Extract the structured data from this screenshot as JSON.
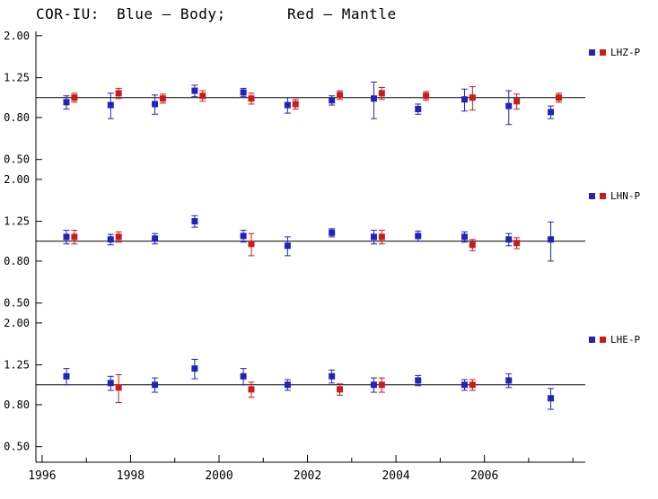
{
  "title": {
    "station": "COR-IU:",
    "body_legend": "Blue — Body;",
    "mantle_legend": "Red — Mantle"
  },
  "colors": {
    "axis": "#000000",
    "body": "#2323bb",
    "mantle": "#cc1b1b"
  },
  "axes": {
    "x_range": [
      1995.86,
      2008.28
    ],
    "x_ticks": [
      1996,
      1998,
      2000,
      2002,
      2004,
      2006
    ],
    "y_range": [
      0.42,
      2.1
    ],
    "y_scale": "log",
    "y_ticks": [
      2.0,
      1.25,
      0.8,
      0.5
    ],
    "y_tick_labels": [
      "2.00",
      "1.25",
      "0.80",
      "0.50"
    ],
    "reference_line": 1.0,
    "grid": false,
    "legend_position": "right"
  },
  "chart_data": [
    {
      "type": "scatter",
      "panel": "LHZ-P",
      "series": [
        {
          "name": "Body",
          "color_key": "body",
          "x": [
            1996.55,
            1997.55,
            1998.55,
            1999.45,
            2000.55,
            2001.55,
            2002.55,
            2003.5,
            2004.5,
            2005.55,
            2006.55,
            2007.5
          ],
          "y": [
            0.95,
            0.92,
            0.93,
            1.08,
            1.06,
            0.92,
            0.97,
            0.99,
            0.88,
            0.98,
            0.91,
            0.85
          ],
          "yerr": [
            0.07,
            0.13,
            0.1,
            0.07,
            0.05,
            0.08,
            0.05,
            0.2,
            0.05,
            0.12,
            0.17,
            0.06
          ]
        },
        {
          "name": "Mantle",
          "color_key": "mantle",
          "x": [
            1996.73,
            1997.73,
            1998.73,
            1999.63,
            2000.73,
            2001.73,
            2002.73,
            2003.68,
            2004.68,
            2005.73,
            2006.73,
            2007.68
          ],
          "y": [
            1.0,
            1.05,
            0.99,
            1.02,
            0.99,
            0.93,
            1.03,
            1.05,
            1.02,
            1.0,
            0.96,
            1.0
          ],
          "yerr": [
            0.05,
            0.06,
            0.05,
            0.06,
            0.06,
            0.05,
            0.05,
            0.07,
            0.05,
            0.13,
            0.08,
            0.05
          ]
        }
      ]
    },
    {
      "type": "scatter",
      "panel": "LHN-P",
      "series": [
        {
          "name": "Body",
          "color_key": "body",
          "x": [
            1996.55,
            1997.55,
            1998.55,
            1999.45,
            2000.55,
            2001.55,
            2002.55,
            2003.5,
            2004.5,
            2005.55,
            2006.55,
            2007.5
          ],
          "y": [
            1.05,
            1.02,
            1.03,
            1.25,
            1.06,
            0.95,
            1.1,
            1.05,
            1.06,
            1.05,
            1.02,
            1.02
          ],
          "yerr": [
            0.08,
            0.06,
            0.06,
            0.08,
            0.07,
            0.1,
            0.05,
            0.08,
            0.06,
            0.06,
            0.07,
            0.22
          ]
        },
        {
          "name": "Mantle",
          "color_key": "mantle",
          "x": [
            1996.73,
            1997.73,
            2000.73,
            2003.68,
            2005.73,
            2006.73
          ],
          "y": [
            1.05,
            1.05,
            0.97,
            1.05,
            0.96,
            0.98
          ],
          "yerr": [
            0.08,
            0.06,
            0.12,
            0.08,
            0.06,
            0.06
          ]
        }
      ]
    },
    {
      "type": "scatter",
      "panel": "LHE-P",
      "series": [
        {
          "name": "Body",
          "color_key": "body",
          "x": [
            1996.55,
            1997.55,
            1998.55,
            1999.45,
            2000.55,
            2001.55,
            2002.55,
            2003.5,
            2004.5,
            2005.55,
            2006.55,
            2007.5
          ],
          "y": [
            1.1,
            1.02,
            1.0,
            1.2,
            1.1,
            1.0,
            1.1,
            1.0,
            1.05,
            1.0,
            1.05,
            0.86
          ],
          "yerr": [
            0.1,
            0.08,
            0.08,
            0.13,
            0.1,
            0.06,
            0.08,
            0.08,
            0.06,
            0.06,
            0.08,
            0.1
          ]
        },
        {
          "name": "Mantle",
          "color_key": "mantle",
          "x": [
            1997.73,
            2000.73,
            2002.73,
            2003.68,
            2005.73
          ],
          "y": [
            0.97,
            0.95,
            0.95,
            1.0,
            1.0
          ],
          "yerr": [
            0.15,
            0.08,
            0.06,
            0.08,
            0.06
          ]
        }
      ]
    }
  ]
}
